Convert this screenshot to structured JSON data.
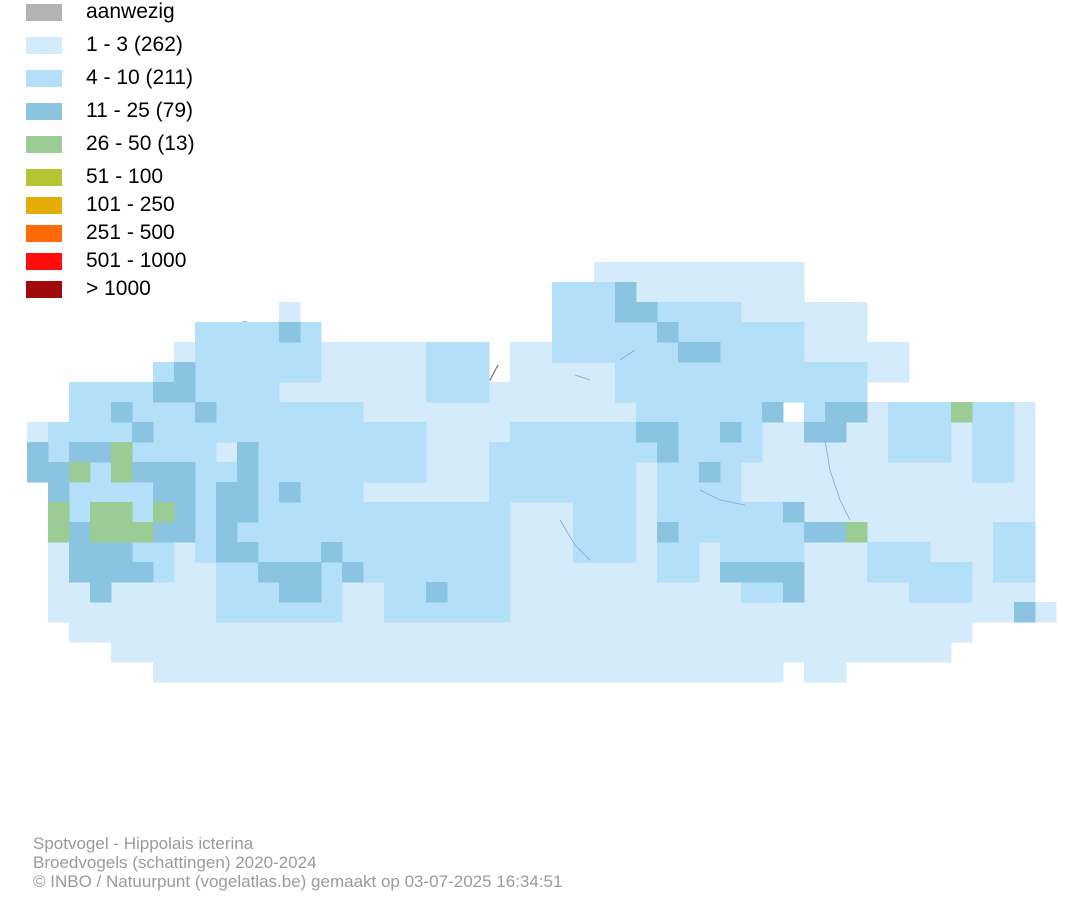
{
  "legend": {
    "items": [
      {
        "label": "aanwezig",
        "color": "#b3b3b3"
      },
      {
        "label": "1 - 3 (262)",
        "color": "#d4ebfb"
      },
      {
        "label": "4 - 10 (211)",
        "color": "#b3e0f8"
      },
      {
        "label": "11 - 25 (79)",
        "color": "#8bc4e0"
      },
      {
        "label": "26 - 50 (13)",
        "color": "#9bcc95"
      },
      {
        "label": "51 - 100",
        "color": "#b5c433"
      },
      {
        "label": "101 - 250",
        "color": "#e3ad05"
      },
      {
        "label": "251 - 500",
        "color": "#ff6a08"
      },
      {
        "label": "501 - 1000",
        "color": "#ff0d0d"
      },
      {
        "label": "> 1000",
        "color": "#a10a0a"
      }
    ]
  },
  "map": {
    "border_color": "#7a6a62",
    "river_color": "#9a9ae0"
  },
  "footer": {
    "line1": "Spotvogel - Hippolais icterina",
    "line2": "Broedvogels (schattingen) 2020-2024",
    "line3": "© INBO / Natuurpunt (vogelatlas.be) gemaakt op 03-07-2025 16:34:51"
  }
}
